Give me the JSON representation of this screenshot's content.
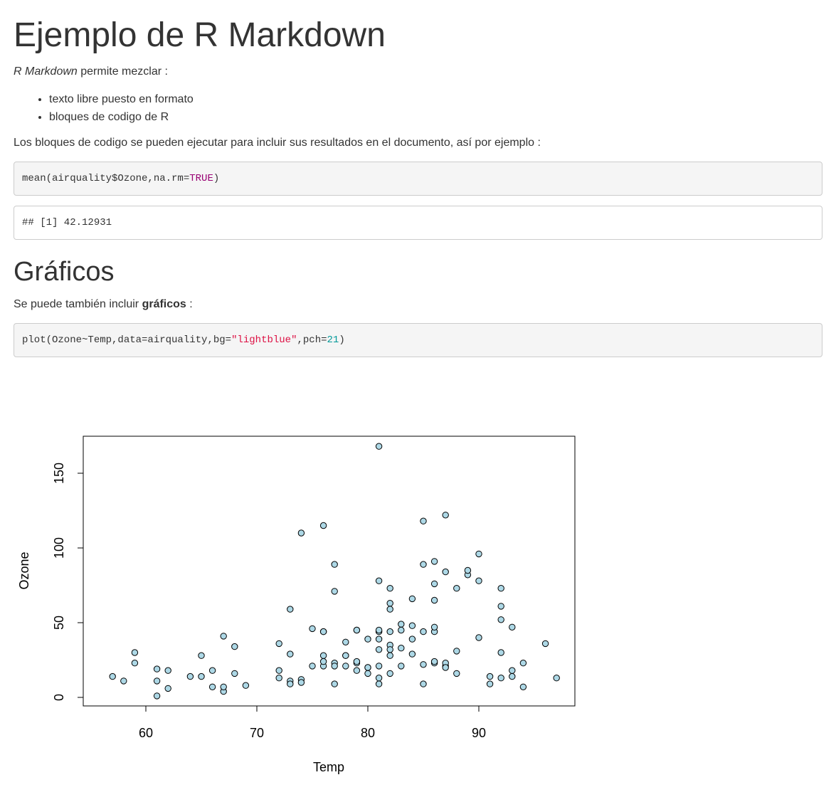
{
  "title": "Ejemplo de R Markdown",
  "intro": {
    "em": "R Markdown",
    "rest": " permite mezclar :"
  },
  "bullets": [
    "texto libre puesto en formato",
    "bloques de codigo de R"
  ],
  "para1": "Los bloques de codigo se pueden ejecutar para incluir sus resultados en el documento, así por ejemplo :",
  "code1": {
    "pre": "mean(airquality$Ozone,na.rm=",
    "kw": "TRUE",
    "post": ")"
  },
  "output1": "## [1] 42.12931",
  "section_title": "Gráficos",
  "para2": {
    "pre": "Se puede también incluir ",
    "strong": "gráficos",
    "post": " :"
  },
  "code2": {
    "pre": "plot(Ozone~Temp,data=airquality,bg=",
    "str": "\"lightblue\"",
    "mid": ",pch=",
    "num": "21",
    "post": ")"
  },
  "chart_data": {
    "type": "scatter",
    "xlabel": "Temp",
    "ylabel": "Ozone",
    "xlim": [
      55,
      99
    ],
    "ylim": [
      -5,
      175
    ],
    "x_ticks": [
      60,
      70,
      80,
      90
    ],
    "y_ticks": [
      0,
      50,
      100,
      150
    ],
    "point_fill": "#add8e6",
    "point_stroke": "#000000",
    "points": [
      [
        67,
        41
      ],
      [
        72,
        36
      ],
      [
        74,
        12
      ],
      [
        62,
        18
      ],
      [
        65,
        28
      ],
      [
        59,
        23
      ],
      [
        61,
        19
      ],
      [
        69,
        8
      ],
      [
        66,
        7
      ],
      [
        68,
        16
      ],
      [
        58,
        11
      ],
      [
        64,
        14
      ],
      [
        66,
        18
      ],
      [
        57,
        14
      ],
      [
        68,
        34
      ],
      [
        62,
        6
      ],
      [
        59,
        30
      ],
      [
        73,
        11
      ],
      [
        61,
        1
      ],
      [
        61,
        11
      ],
      [
        67,
        4
      ],
      [
        81,
        32
      ],
      [
        79,
        45
      ],
      [
        76,
        115
      ],
      [
        78,
        37
      ],
      [
        74,
        10
      ],
      [
        67,
        7
      ],
      [
        84,
        48
      ],
      [
        85,
        9
      ],
      [
        82,
        16
      ],
      [
        87,
        21
      ],
      [
        90,
        40
      ],
      [
        87,
        23
      ],
      [
        93,
        47
      ],
      [
        92,
        52
      ],
      [
        82,
        63
      ],
      [
        80,
        39
      ],
      [
        79,
        45
      ],
      [
        77,
        89
      ],
      [
        72,
        18
      ],
      [
        65,
        14
      ],
      [
        73,
        29
      ],
      [
        76,
        28
      ],
      [
        77,
        23
      ],
      [
        76,
        21
      ],
      [
        76,
        24
      ],
      [
        76,
        44
      ],
      [
        75,
        21
      ],
      [
        78,
        28
      ],
      [
        73,
        9
      ],
      [
        80,
        20
      ],
      [
        77,
        71
      ],
      [
        83,
        49
      ],
      [
        84,
        39
      ],
      [
        85,
        44
      ],
      [
        81,
        21
      ],
      [
        84,
        29
      ],
      [
        83,
        45
      ],
      [
        83,
        33
      ],
      [
        88,
        73
      ],
      [
        92,
        13
      ],
      [
        92,
        61
      ],
      [
        89,
        82
      ],
      [
        82,
        44
      ],
      [
        73,
        59
      ],
      [
        81,
        39
      ],
      [
        91,
        9
      ],
      [
        80,
        16
      ],
      [
        81,
        78
      ],
      [
        82,
        35
      ],
      [
        84,
        66
      ],
      [
        87,
        122
      ],
      [
        85,
        89
      ],
      [
        74,
        110
      ],
      [
        81,
        44
      ],
      [
        82,
        28
      ],
      [
        86,
        65
      ],
      [
        85,
        22
      ],
      [
        82,
        59
      ],
      [
        86,
        23
      ],
      [
        88,
        31
      ],
      [
        86,
        44
      ],
      [
        83,
        21
      ],
      [
        81,
        9
      ],
      [
        81,
        45
      ],
      [
        81,
        168
      ],
      [
        82,
        73
      ],
      [
        86,
        76
      ],
      [
        85,
        118
      ],
      [
        87,
        84
      ],
      [
        89,
        85
      ],
      [
        90,
        96
      ],
      [
        90,
        78
      ],
      [
        92,
        73
      ],
      [
        86,
        91
      ],
      [
        86,
        47
      ],
      [
        82,
        32
      ],
      [
        80,
        20
      ],
      [
        79,
        23
      ],
      [
        77,
        21
      ],
      [
        79,
        24
      ],
      [
        76,
        44
      ],
      [
        78,
        21
      ],
      [
        78,
        28
      ],
      [
        77,
        9
      ],
      [
        72,
        13
      ],
      [
        75,
        46
      ],
      [
        79,
        18
      ],
      [
        81,
        13
      ],
      [
        86,
        24
      ],
      [
        88,
        16
      ],
      [
        97,
        13
      ],
      [
        94,
        23
      ],
      [
        96,
        36
      ],
      [
        94,
        7
      ],
      [
        91,
        14
      ],
      [
        92,
        30
      ],
      [
        93,
        14
      ],
      [
        93,
        18
      ],
      [
        87,
        20
      ]
    ]
  }
}
